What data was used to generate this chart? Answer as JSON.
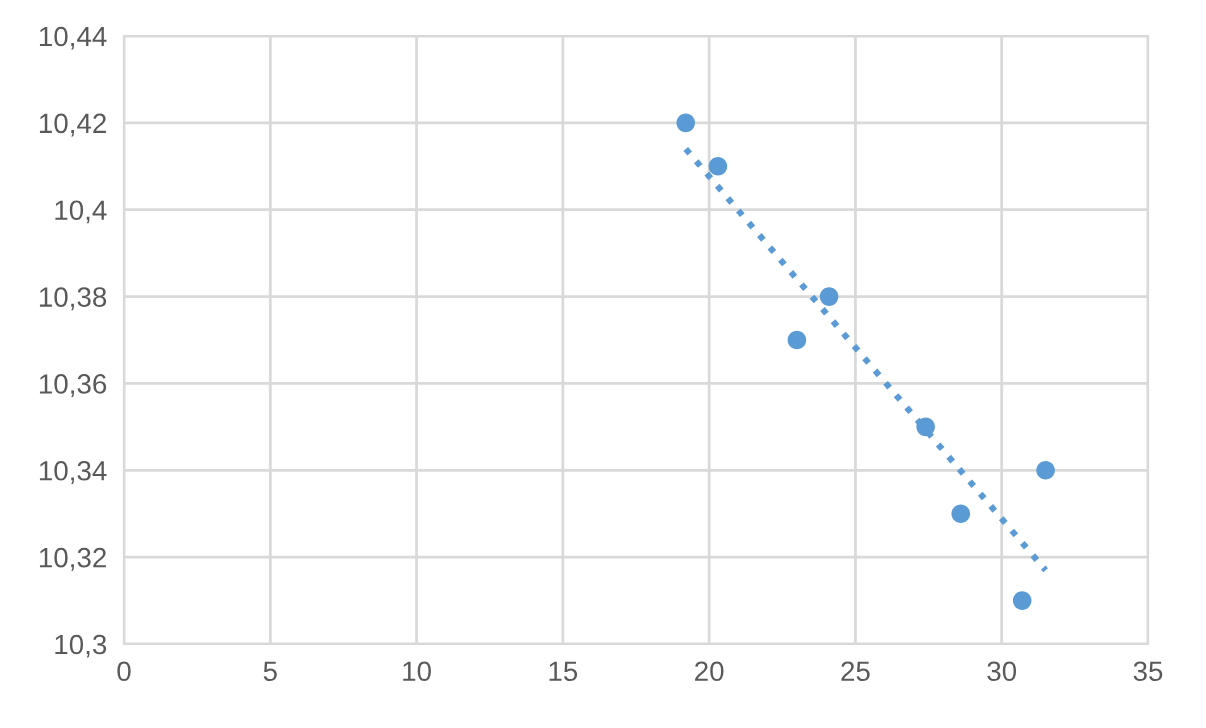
{
  "chart_data": {
    "type": "scatter",
    "series": [
      {
        "color": "#5b9bd5",
        "marker": "circle",
        "x": [
          19.2,
          20.3,
          23.0,
          24.1,
          27.4,
          28.6,
          30.7,
          31.5
        ],
        "values": [
          10.42,
          10.41,
          10.37,
          10.38,
          10.35,
          10.33,
          10.31,
          10.34
        ]
      },
      {
        "type": "line",
        "color": "#5b9bd5",
        "line_style": "dotted",
        "x": [
          19.2,
          31.5
        ],
        "values": [
          10.414,
          10.317
        ]
      }
    ],
    "xlim": [
      0,
      35
    ],
    "xticks": [
      0,
      5,
      10,
      15,
      20,
      25,
      30,
      35
    ],
    "ylim": [
      10.3,
      10.44
    ],
    "yticks": [
      {
        "value": 10.3,
        "label": "10,3"
      },
      {
        "value": 10.32,
        "label": "10,32"
      },
      {
        "value": 10.34,
        "label": "10,34"
      },
      {
        "value": 10.36,
        "label": "10,36"
      },
      {
        "value": 10.38,
        "label": "10,38"
      },
      {
        "value": 10.4,
        "label": "10,4"
      },
      {
        "value": 10.42,
        "label": "10,42"
      },
      {
        "value": 10.44,
        "label": "10,44"
      }
    ],
    "grid": true
  }
}
